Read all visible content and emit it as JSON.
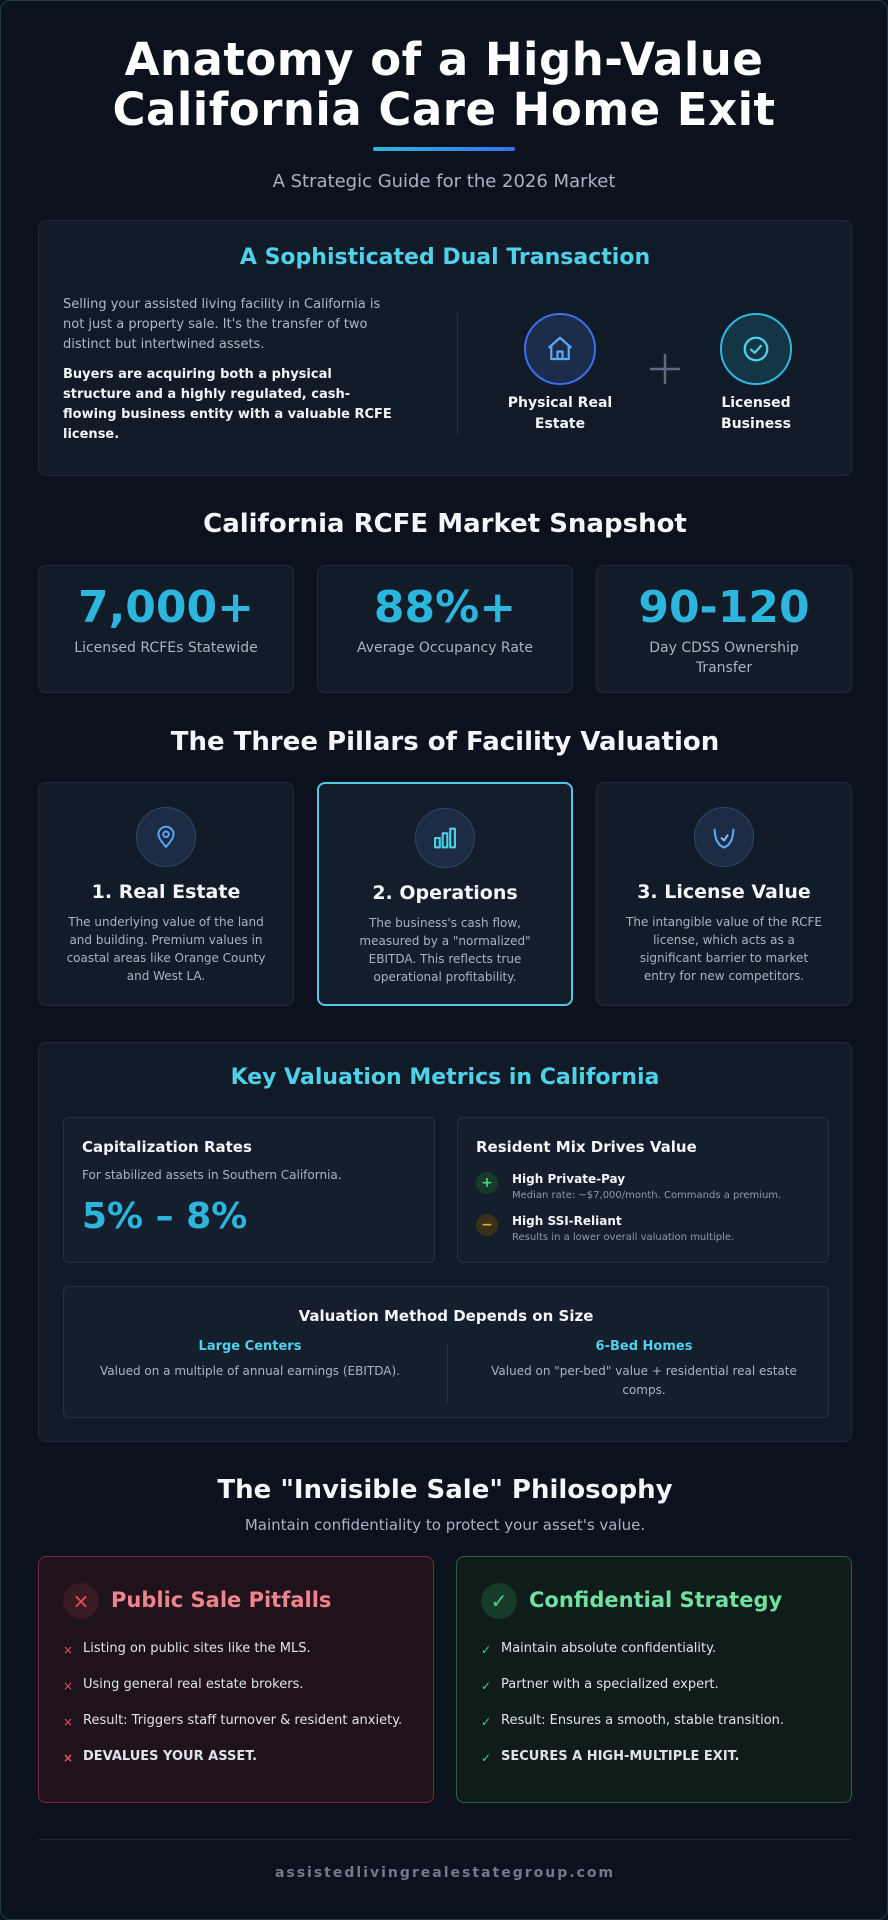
{
  "hero": {
    "title_line1": "Anatomy of a High-Value",
    "title_line2": "California Care Home Exit",
    "subtitle": "A Strategic Guide for the 2026 Market"
  },
  "dual": {
    "title": "A Sophisticated Dual Transaction",
    "intro": "Selling your assisted living facility in California is not just a property sale. It's the transfer of two distinct but intertwined assets.",
    "emphasis": "Buyers are acquiring both a physical structure and a highly regulated, cash-flowing business entity with a valuable RCFE license.",
    "asset_a": "Physical Real Estate",
    "asset_b": "Licensed Business",
    "icons": [
      "house-icon",
      "check-circle-icon",
      "plus-icon"
    ]
  },
  "snapshot": {
    "title": "California RCFE Market Snapshot",
    "stats": [
      {
        "value": "7,000+",
        "label": "Licensed RCFEs Statewide"
      },
      {
        "value": "88%+",
        "label": "Average Occupancy Rate"
      },
      {
        "value": "90-120",
        "label": "Day CDSS Ownership Transfer"
      }
    ]
  },
  "pillars": {
    "title": "The Three Pillars of Facility Valuation",
    "items": [
      {
        "title": "1. Real Estate",
        "desc": "The underlying value of the land and building. Premium values in coastal areas like Orange County and West LA.",
        "icon": "map-pin-icon"
      },
      {
        "title": "2. Operations",
        "desc": "The business's cash flow, measured by a \"normalized\" EBITDA. This reflects true operational profitability.",
        "icon": "bar-chart-icon"
      },
      {
        "title": "3. License Value",
        "desc": "The intangible value of the RCFE license, which acts as a significant barrier to market entry for new competitors.",
        "icon": "shield-icon"
      }
    ]
  },
  "metrics": {
    "title": "Key Valuation Metrics in California",
    "cap": {
      "title": "Capitalization Rates",
      "desc": "For stabilized assets in Southern California.",
      "value": "5% – 8%"
    },
    "mix": {
      "title": "Resident Mix Drives Value",
      "rows": [
        {
          "mark": "+",
          "title": "High Private-Pay",
          "desc": "Median rate: ~$7,000/month. Commands a premium."
        },
        {
          "mark": "−",
          "title": "High SSI-Reliant",
          "desc": "Results in a lower overall valuation multiple."
        }
      ]
    },
    "method": {
      "title": "Valuation Method Depends on Size",
      "cols": [
        {
          "heading": "Large Centers",
          "desc": "Valued on a multiple of annual earnings (EBITDA)."
        },
        {
          "heading": "6-Bed Homes",
          "desc": "Valued on \"per-bed\" value + residential real estate comps."
        }
      ]
    }
  },
  "invisible": {
    "title": "The \"Invisible Sale\" Philosophy",
    "subtitle": "Maintain confidentiality to protect your asset's value.",
    "pitfalls": {
      "title": "Public Sale Pitfalls",
      "badge": "×",
      "mark": "×",
      "items": [
        "Listing on public sites like the MLS.",
        "Using general real estate brokers.",
        "Result: Triggers staff turnover & resident anxiety.",
        "DEVALUES YOUR ASSET."
      ]
    },
    "strategy": {
      "title": "Confidential Strategy",
      "badge": "✓",
      "mark": "✓",
      "items": [
        "Maintain absolute confidentiality.",
        "Partner with a specialized expert.",
        "Result: Ensures a smooth, stable transition.",
        "SECURES A HIGH-MULTIPLE EXIT."
      ]
    }
  },
  "footer": {
    "site": "assistedlivingrealestategroup.com"
  },
  "colors": {
    "background": "#0c121d",
    "accent_cyan": "#2cb6dd",
    "accent_blue": "#3b6ff0",
    "danger": "#e8505d",
    "success": "#4ad27f"
  }
}
